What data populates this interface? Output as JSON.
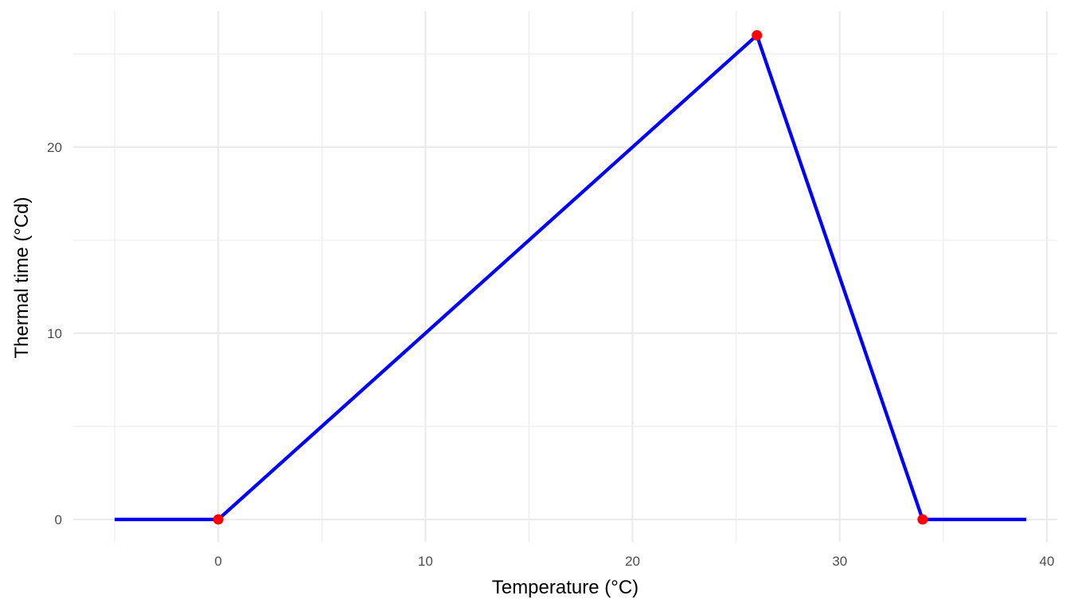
{
  "chart_data": {
    "type": "line",
    "title": "",
    "xlabel": "Temperature (°C)",
    "ylabel": "Thermal time (°Cd)",
    "xlim": [
      -7,
      40.5
    ],
    "ylim": [
      -1.2,
      27.3
    ],
    "x_ticks": [
      0,
      10,
      20,
      30,
      40
    ],
    "y_ticks": [
      0,
      10,
      20
    ],
    "x_minor_ticks": [
      -5,
      5,
      15,
      25,
      35
    ],
    "y_minor_ticks": [
      5,
      15,
      25
    ],
    "grid": true,
    "legend": "none",
    "series": [
      {
        "color": "#0000FF",
        "x": [
          -5,
          0,
          26,
          34,
          39
        ],
        "y": [
          0,
          0,
          26,
          0,
          0
        ]
      }
    ],
    "points": {
      "color": "#FF0000",
      "x": [
        0,
        26,
        34
      ],
      "y": [
        0,
        26,
        0
      ]
    },
    "colors": {
      "grid": "#EBEBEB",
      "tick_label": "#4D4D4D",
      "axis_title": "#000000"
    }
  }
}
